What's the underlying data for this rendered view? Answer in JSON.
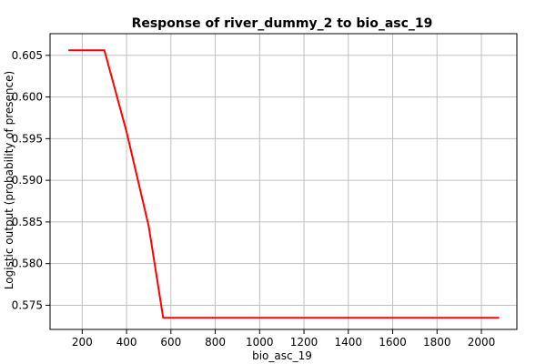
{
  "chart_data": {
    "type": "line",
    "title": "Response of river_dummy_2 to bio_asc_19",
    "xlabel": "bio_asc_19",
    "ylabel": "Logistic output (probability of presence)",
    "xlim": [
      55,
      2160
    ],
    "ylim": [
      0.5721,
      0.6076
    ],
    "x_ticks": [
      200,
      400,
      600,
      800,
      1000,
      1200,
      1400,
      1600,
      1800,
      2000
    ],
    "x_tick_labels": [
      "200",
      "400",
      "600",
      "800",
      "1000",
      "1200",
      "1400",
      "1600",
      "1800",
      "2000"
    ],
    "y_ticks": [
      0.575,
      0.58,
      0.585,
      0.59,
      0.595,
      0.6,
      0.605
    ],
    "y_tick_labels": [
      "0.575",
      "0.580",
      "0.585",
      "0.590",
      "0.595",
      "0.600",
      "0.605"
    ],
    "grid": true,
    "legend": "none",
    "series": [
      {
        "color": "#ff0000",
        "x": [
          138,
          300,
          400,
          500,
          565,
          580,
          2080
        ],
        "y": [
          0.6056,
          0.6056,
          0.5958,
          0.5845,
          0.5735,
          0.5735,
          0.5735
        ]
      }
    ]
  }
}
